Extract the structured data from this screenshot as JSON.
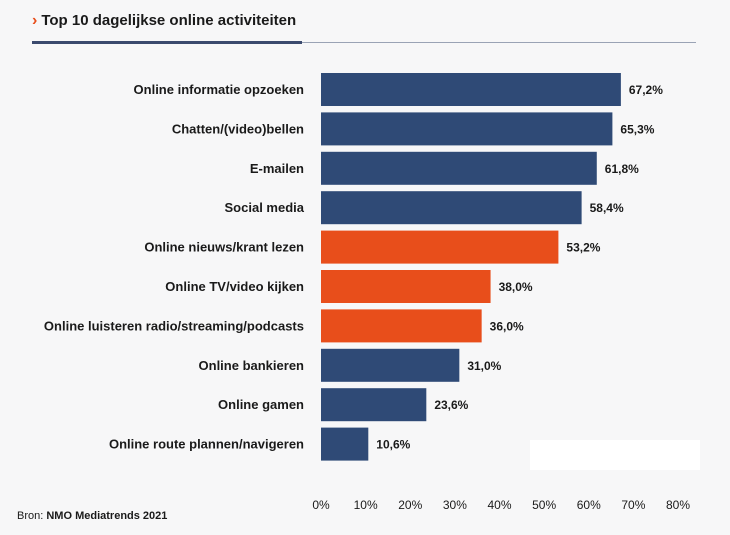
{
  "header": {
    "title": "Top 10 dagelijkse online activiteiten"
  },
  "source": {
    "label": "Bron:",
    "name": "NMO Mediatrends 2021"
  },
  "colors": {
    "navy": "#2f4a76",
    "orange": "#e84e1b"
  },
  "chart_data": {
    "type": "bar",
    "orientation": "horizontal",
    "title": "Top 10 dagelijkse online activiteiten",
    "categories": [
      "Online informatie opzoeken",
      "Chatten/(video)bellen",
      "E-mailen",
      "Social media",
      "Online nieuws/krant lezen",
      "Online TV/video kijken",
      "Online luisteren radio/streaming/podcasts",
      "Online bankieren",
      "Online gamen",
      "Online route plannen/navigeren"
    ],
    "values": [
      67.2,
      65.3,
      61.8,
      58.4,
      53.2,
      38.0,
      36.0,
      31.0,
      23.6,
      10.6
    ],
    "value_labels": [
      "67,2%",
      "65,3%",
      "61,8%",
      "58,4%",
      "53,2%",
      "38,0%",
      "36,0%",
      "31,0%",
      "23,6%",
      "10,6%"
    ],
    "highlight": [
      false,
      false,
      false,
      false,
      true,
      true,
      true,
      false,
      false,
      false
    ],
    "xlim": [
      0,
      80
    ],
    "xticks": [
      0,
      10,
      20,
      30,
      40,
      50,
      60,
      70,
      80
    ],
    "xtick_labels": [
      "0%",
      "10%",
      "20%",
      "30%",
      "40%",
      "50%",
      "60%",
      "70%",
      "80%"
    ],
    "grid": false,
    "legend": "none"
  }
}
